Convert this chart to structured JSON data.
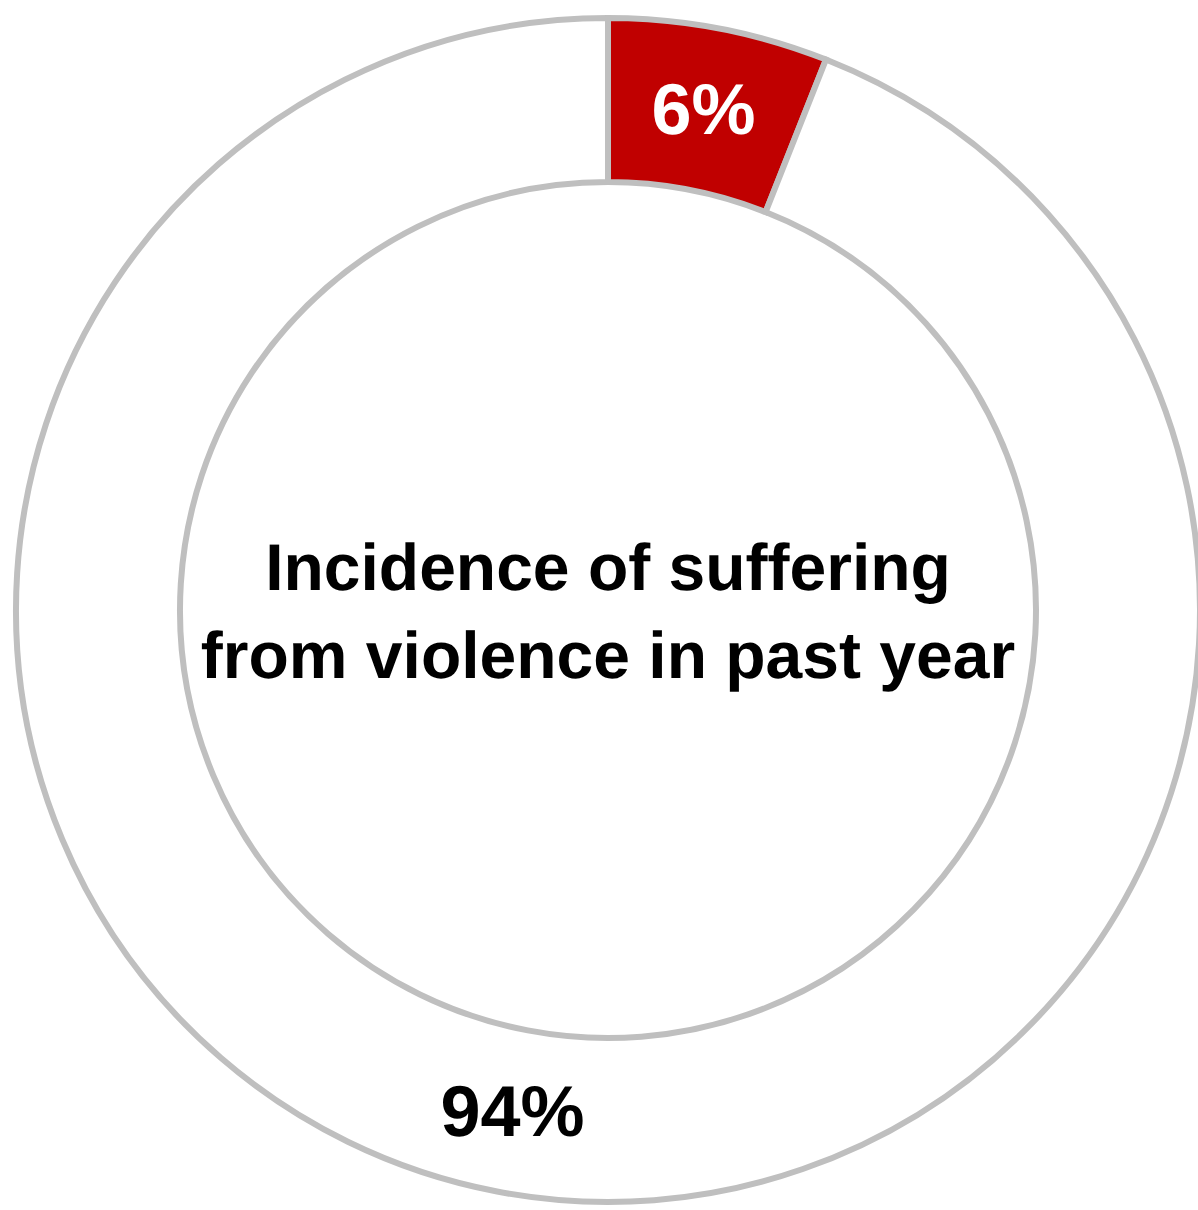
{
  "chart_data": {
    "type": "donut",
    "title": "Incidence of suffering from violence in past year",
    "categories": [
      null,
      null
    ],
    "values": [
      6,
      94
    ],
    "colors": [
      "#c00000",
      "#ffffff"
    ],
    "value_labels": [
      "6%",
      "94%"
    ]
  }
}
